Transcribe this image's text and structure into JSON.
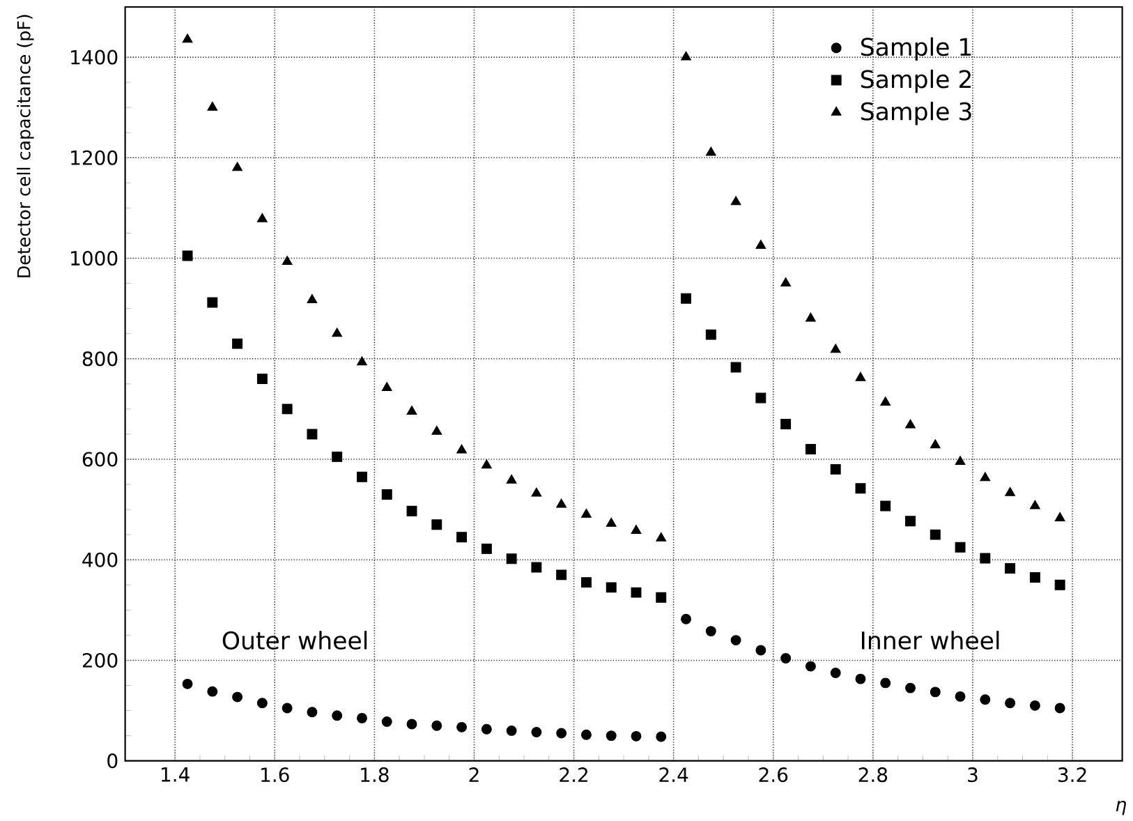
{
  "chart_data": {
    "type": "scatter",
    "xlabel": "η",
    "ylabel": "Detector cell capacitance (pF)",
    "xlim": [
      1.3,
      3.3
    ],
    "ylim": [
      0,
      1500
    ],
    "xticks": [
      1.4,
      1.6,
      1.8,
      2,
      2.2,
      2.4,
      2.6,
      2.8,
      3,
      3.2
    ],
    "yticks": [
      0,
      200,
      400,
      600,
      800,
      1000,
      1200,
      1400
    ],
    "grid": true,
    "legend": "top right",
    "annotations": [
      "Outer wheel",
      "Inner wheel"
    ],
    "x": [
      1.425,
      1.475,
      1.525,
      1.575,
      1.625,
      1.675,
      1.725,
      1.775,
      1.825,
      1.875,
      1.925,
      1.975,
      2.025,
      2.075,
      2.125,
      2.175,
      2.225,
      2.275,
      2.325,
      2.375,
      2.425,
      2.475,
      2.525,
      2.575,
      2.625,
      2.675,
      2.725,
      2.775,
      2.825,
      2.875,
      2.925,
      2.975,
      3.025,
      3.075,
      3.125,
      3.175
    ],
    "series": [
      {
        "name": "Sample 1",
        "color": "#000000",
        "marker": "circle",
        "values": [
          153,
          138,
          127,
          115,
          105,
          97,
          90,
          85,
          78,
          73,
          70,
          67,
          63,
          60,
          57,
          55,
          52,
          50,
          49,
          48,
          282,
          258,
          240,
          220,
          204,
          188,
          175,
          163,
          155,
          145,
          137,
          128,
          122,
          115,
          110,
          105
        ]
      },
      {
        "name": "Sample 2",
        "color": "#000000",
        "marker": "square",
        "values": [
          1005,
          912,
          830,
          760,
          700,
          650,
          605,
          565,
          530,
          497,
          470,
          445,
          422,
          402,
          385,
          370,
          355,
          345,
          335,
          325,
          920,
          848,
          783,
          722,
          670,
          620,
          580,
          542,
          507,
          477,
          450,
          425,
          403,
          383,
          365,
          350
        ]
      },
      {
        "name": "Sample 3",
        "color": "#000000",
        "marker": "triangle",
        "values": [
          1435,
          1300,
          1180,
          1078,
          993,
          917,
          850,
          793,
          742,
          695,
          655,
          618,
          588,
          558,
          532,
          510,
          490,
          472,
          458,
          443,
          1400,
          1210,
          1112,
          1025,
          950,
          880,
          818,
          762,
          713,
          668,
          628,
          595,
          563,
          533,
          507,
          483
        ]
      }
    ]
  }
}
